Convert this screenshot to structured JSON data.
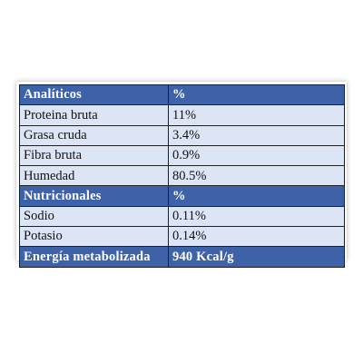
{
  "colors": {
    "header_bg": "#3d62a8",
    "header_text": "#ffffff",
    "row_bg": "#dbe5f5",
    "row_text": "#111111",
    "border": "#1f1f1f"
  },
  "table": {
    "rows": [
      {
        "type": "header",
        "label": "Analíticos",
        "value": "%"
      },
      {
        "type": "data",
        "label": "Proteina bruta",
        "value": "11%"
      },
      {
        "type": "data",
        "label": "Grasa cruda",
        "value": "3.4%"
      },
      {
        "type": "data",
        "label": "Fibra bruta",
        "value": "0.9%"
      },
      {
        "type": "data",
        "label": "Humedad",
        "value": "80.5%"
      },
      {
        "type": "header",
        "label": "Nutricionales",
        "value": "%"
      },
      {
        "type": "data",
        "label": "Sodio",
        "value": "0.11%"
      },
      {
        "type": "data",
        "label": "Potasio",
        "value": "0.14%"
      },
      {
        "type": "header",
        "label": "Energía metabolizada",
        "value": "940 Kcal/g"
      }
    ]
  }
}
